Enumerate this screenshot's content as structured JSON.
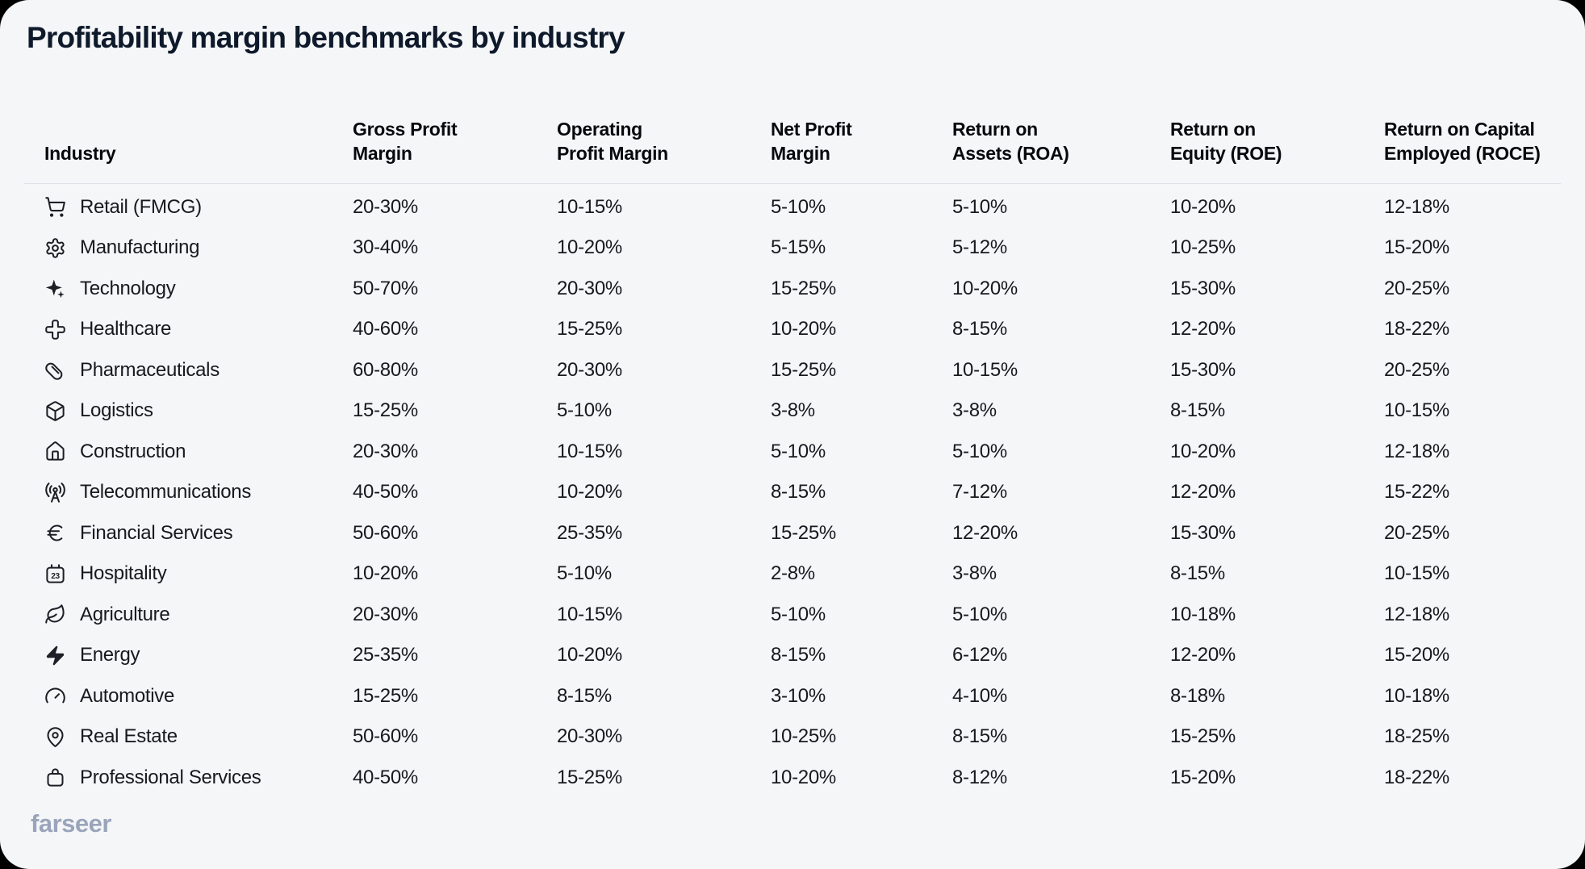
{
  "page": {
    "logo_text": "farseer"
  },
  "colors": {
    "page_bg": "#000000",
    "card_bg": "#f5f6f8",
    "title_text": "#0e1a2b",
    "header_text": "#07090d",
    "cell_text": "#17191e",
    "divider": "#dfe2e8",
    "logo_text": "#9aa5bb"
  },
  "chart_data": {
    "type": "table",
    "title": "Profitability margin benchmarks by industry",
    "columns": [
      {
        "key": "industry",
        "label": "Industry"
      },
      {
        "key": "gross",
        "label": "Gross Profit\nMargin"
      },
      {
        "key": "operating",
        "label": "Operating\nProfit Margin"
      },
      {
        "key": "net",
        "label": "Net Profit\nMargin"
      },
      {
        "key": "roa",
        "label": "Return on\nAssets (ROA)"
      },
      {
        "key": "roe",
        "label": "Return on\nEquity (ROE)"
      },
      {
        "key": "roce",
        "label": "Return on Capital\nEmployed (ROCE)"
      }
    ],
    "rows": [
      {
        "icon": "shopping-cart-icon",
        "industry": "Retail (FMCG)",
        "gross": "20-30%",
        "operating": "10-15%",
        "net": "5-10%",
        "roa": "5-10%",
        "roe": "10-20%",
        "roce": "12-18%"
      },
      {
        "icon": "gear-icon",
        "industry": "Manufacturing",
        "gross": "30-40%",
        "operating": "10-20%",
        "net": "5-15%",
        "roa": "5-12%",
        "roe": "10-25%",
        "roce": "15-20%"
      },
      {
        "icon": "sparkles-icon",
        "industry": "Technology",
        "gross": "50-70%",
        "operating": "20-30%",
        "net": "15-25%",
        "roa": "10-20%",
        "roe": "15-30%",
        "roce": "20-25%"
      },
      {
        "icon": "medical-cross-icon",
        "industry": "Healthcare",
        "gross": "40-60%",
        "operating": "15-25%",
        "net": "10-20%",
        "roa": "8-15%",
        "roe": "12-20%",
        "roce": "18-22%"
      },
      {
        "icon": "pill-icon",
        "industry": "Pharmaceuticals",
        "gross": "60-80%",
        "operating": "20-30%",
        "net": "15-25%",
        "roa": "10-15%",
        "roe": "15-30%",
        "roce": "20-25%"
      },
      {
        "icon": "package-icon",
        "industry": "Logistics",
        "gross": "15-25%",
        "operating": "5-10%",
        "net": "3-8%",
        "roa": "3-8%",
        "roe": "8-15%",
        "roce": "10-15%"
      },
      {
        "icon": "house-icon",
        "industry": "Construction",
        "gross": "20-30%",
        "operating": "10-15%",
        "net": "5-10%",
        "roa": "5-10%",
        "roe": "10-20%",
        "roce": "12-18%"
      },
      {
        "icon": "radio-tower-icon",
        "industry": "Telecommunications",
        "gross": "40-50%",
        "operating": "10-20%",
        "net": "8-15%",
        "roa": "7-12%",
        "roe": "12-20%",
        "roce": "15-22%"
      },
      {
        "icon": "euro-icon",
        "industry": "Financial Services",
        "gross": "50-60%",
        "operating": "25-35%",
        "net": "15-25%",
        "roa": "12-20%",
        "roe": "15-30%",
        "roce": "20-25%"
      },
      {
        "icon": "calendar-icon",
        "industry": "Hospitality",
        "gross": "10-20%",
        "operating": "5-10%",
        "net": "2-8%",
        "roa": "3-8%",
        "roe": "8-15%",
        "roce": "10-15%"
      },
      {
        "icon": "leaf-icon",
        "industry": "Agriculture",
        "gross": "20-30%",
        "operating": "10-15%",
        "net": "5-10%",
        "roa": "5-10%",
        "roe": "10-18%",
        "roce": "12-18%"
      },
      {
        "icon": "lightning-icon",
        "industry": "Energy",
        "gross": "25-35%",
        "operating": "10-20%",
        "net": "8-15%",
        "roa": "6-12%",
        "roe": "12-20%",
        "roce": "15-20%"
      },
      {
        "icon": "gauge-icon",
        "industry": "Automotive",
        "gross": "15-25%",
        "operating": "8-15%",
        "net": "3-10%",
        "roa": "4-10%",
        "roe": "8-18%",
        "roce": "10-18%"
      },
      {
        "icon": "map-pin-icon",
        "industry": "Real Estate",
        "gross": "50-60%",
        "operating": "20-30%",
        "net": "10-25%",
        "roa": "8-15%",
        "roe": "15-25%",
        "roce": "18-25%"
      },
      {
        "icon": "handbag-icon",
        "industry": "Professional Services",
        "gross": "40-50%",
        "operating": "15-25%",
        "net": "10-20%",
        "roa": "8-12%",
        "roe": "15-20%",
        "roce": "18-22%"
      }
    ]
  }
}
